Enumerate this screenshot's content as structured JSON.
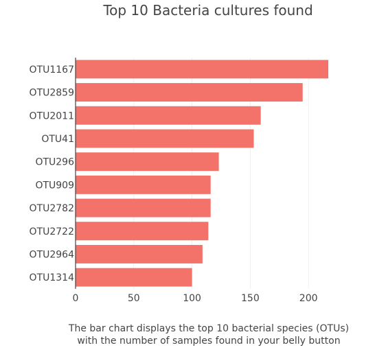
{
  "chart_data": {
    "type": "bar",
    "orientation": "horizontal",
    "title": "Top 10 Bacteria cultures found",
    "xlabel": "",
    "ylabel": "",
    "caption_lines": [
      "The bar chart displays the top 10 bacterial species (OTUs)",
      "with the number of samples found in your belly button"
    ],
    "categories": [
      "OTU1167",
      "OTU2859",
      "OTU2011",
      "OTU41",
      "OTU296",
      "OTU909",
      "OTU2782",
      "OTU2722",
      "OTU2964",
      "OTU1314"
    ],
    "values": [
      217,
      195,
      159,
      153,
      123,
      116,
      116,
      114,
      109,
      100
    ],
    "xlim": [
      0,
      228
    ],
    "xticks": [
      0,
      50,
      100,
      150,
      200
    ],
    "grid": true,
    "bar_color": "#f3736a"
  }
}
